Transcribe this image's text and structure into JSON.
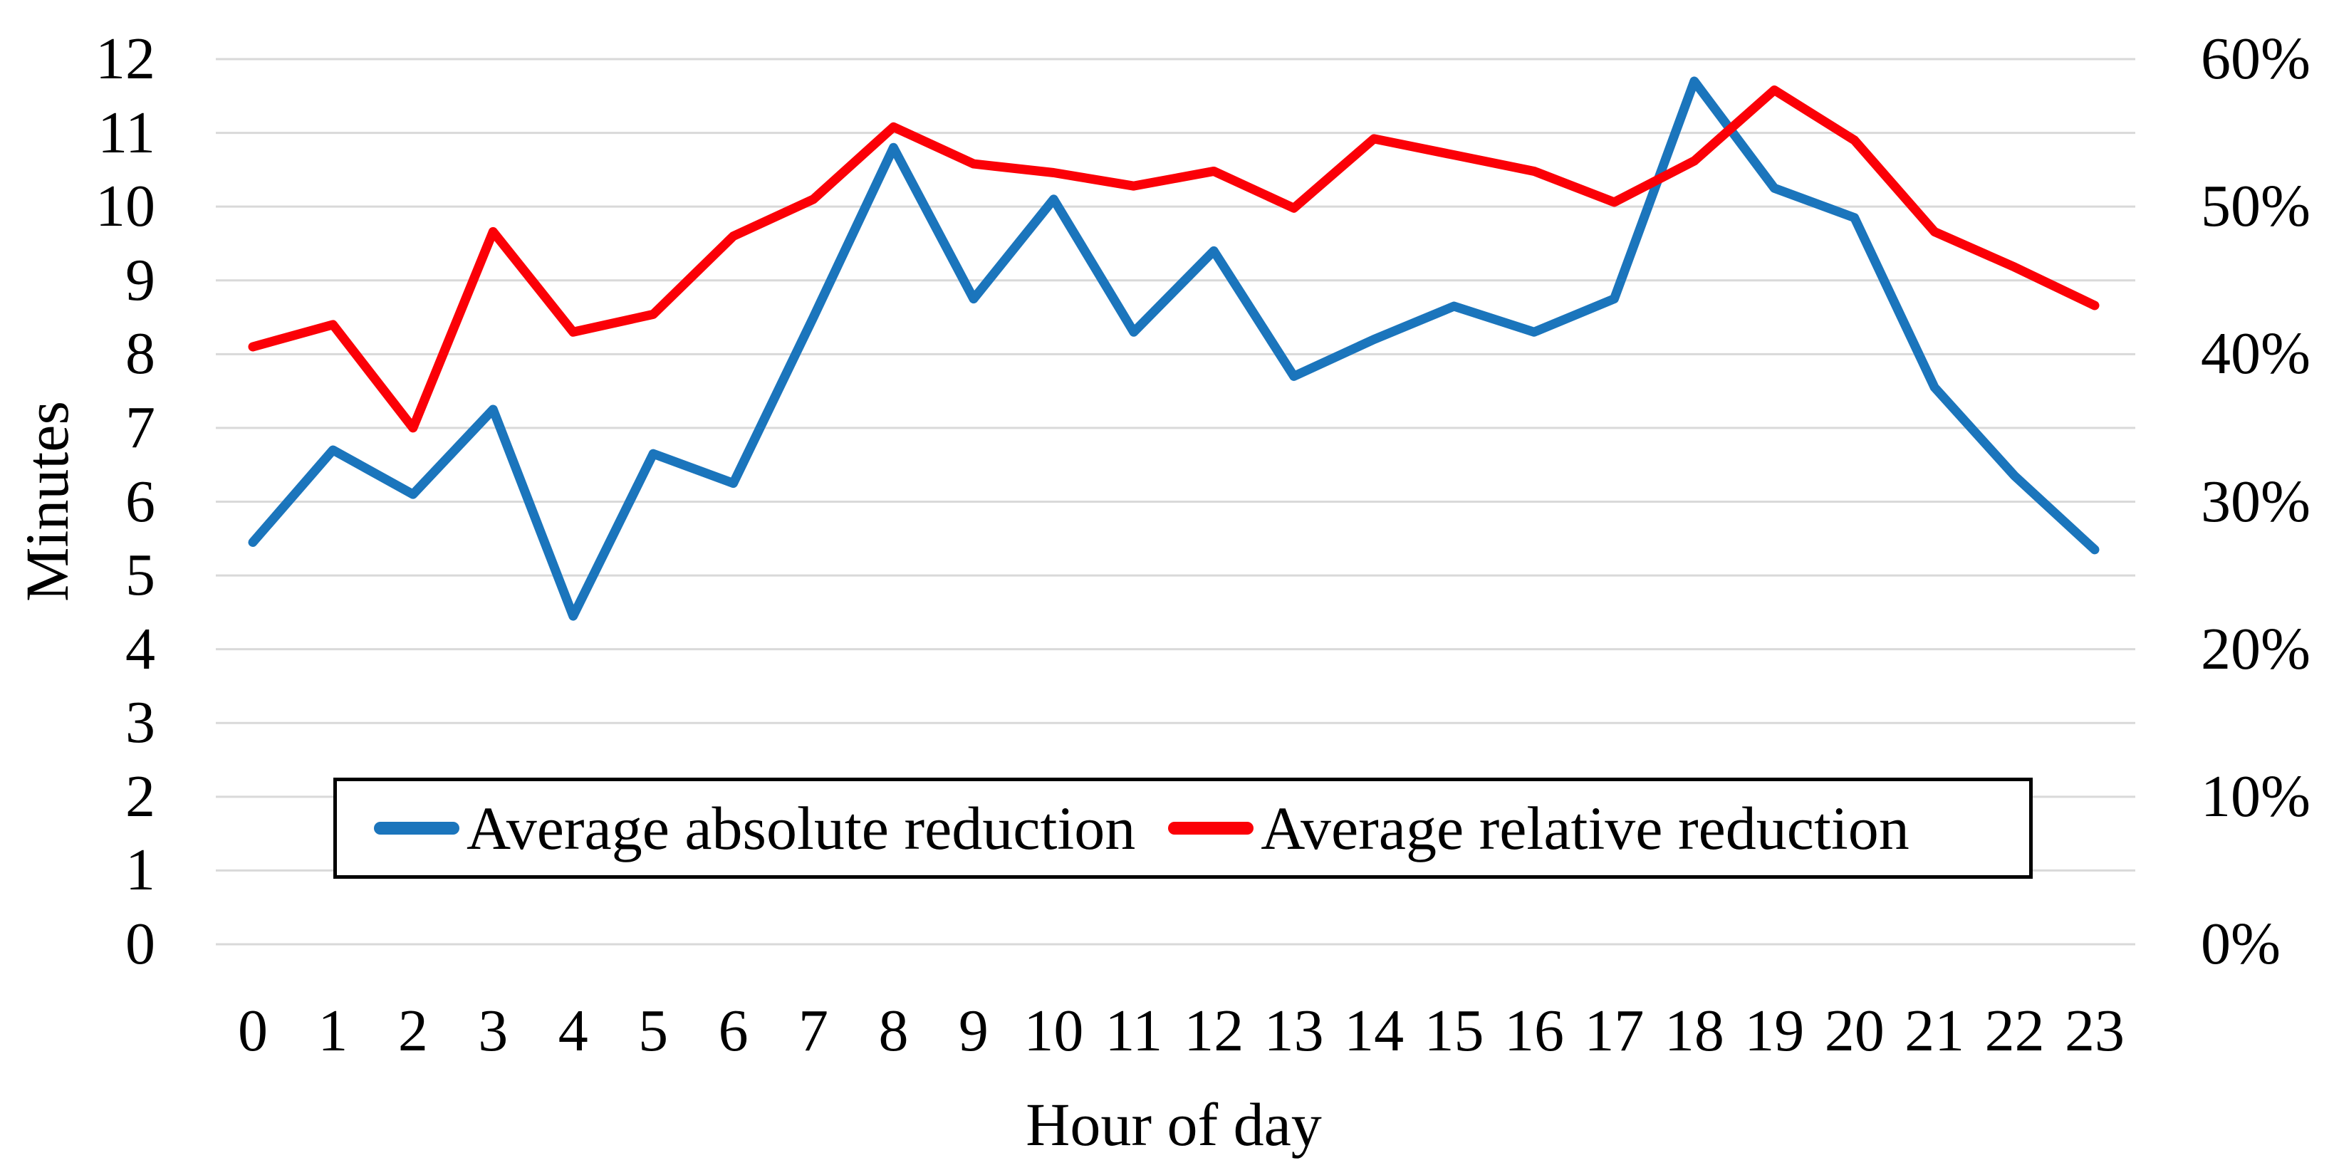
{
  "chart_data": {
    "type": "line",
    "title": "",
    "xlabel": "Hour of day",
    "ylabel": "Minutes",
    "x": [
      0,
      1,
      2,
      3,
      4,
      5,
      6,
      7,
      8,
      9,
      10,
      11,
      12,
      13,
      14,
      15,
      16,
      17,
      18,
      19,
      20,
      21,
      22,
      23
    ],
    "x_tick_labels": [
      "0",
      "1",
      "2",
      "3",
      "4",
      "5",
      "6",
      "7",
      "8",
      "9",
      "10",
      "11",
      "12",
      "13",
      "14",
      "15",
      "16",
      "17",
      "18",
      "19",
      "20",
      "21",
      "22",
      "23"
    ],
    "series": [
      {
        "name": "Average absolute reduction",
        "axis": "left",
        "unit": "minutes",
        "color": "#1B75BC",
        "values": [
          5.45,
          6.7,
          6.1,
          7.25,
          4.45,
          6.65,
          6.25,
          8.5,
          10.8,
          8.75,
          10.1,
          8.3,
          9.4,
          7.7,
          8.2,
          8.65,
          8.3,
          8.75,
          11.7,
          10.25,
          9.85,
          7.55,
          6.35,
          5.35
        ]
      },
      {
        "name": "Average relative reduction",
        "axis": "right",
        "unit": "percent",
        "color": "#FB0007",
        "values": [
          40.5,
          42.0,
          35.0,
          48.3,
          41.5,
          42.7,
          48.0,
          50.5,
          55.4,
          52.9,
          52.3,
          51.4,
          52.4,
          49.9,
          54.6,
          53.5,
          52.4,
          50.3,
          53.1,
          57.9,
          54.5,
          48.3,
          45.9,
          43.3
        ]
      }
    ],
    "left_axis": {
      "min": 0,
      "max": 12,
      "tick_values": [
        0,
        1,
        2,
        3,
        4,
        5,
        6,
        7,
        8,
        9,
        10,
        11,
        12
      ],
      "tick_labels": [
        "0",
        "1",
        "2",
        "3",
        "4",
        "5",
        "6",
        "7",
        "8",
        "9",
        "10",
        "11",
        "12"
      ]
    },
    "right_axis": {
      "min": 0,
      "max": 60,
      "tick_values": [
        0,
        10,
        20,
        30,
        40,
        50,
        60
      ],
      "tick_labels": [
        "0%",
        "10%",
        "20%",
        "30%",
        "40%",
        "50%",
        "60%"
      ]
    },
    "grid": true,
    "gridline_color": "#D9D9D9",
    "legend_position": "bottom-inside-box"
  }
}
